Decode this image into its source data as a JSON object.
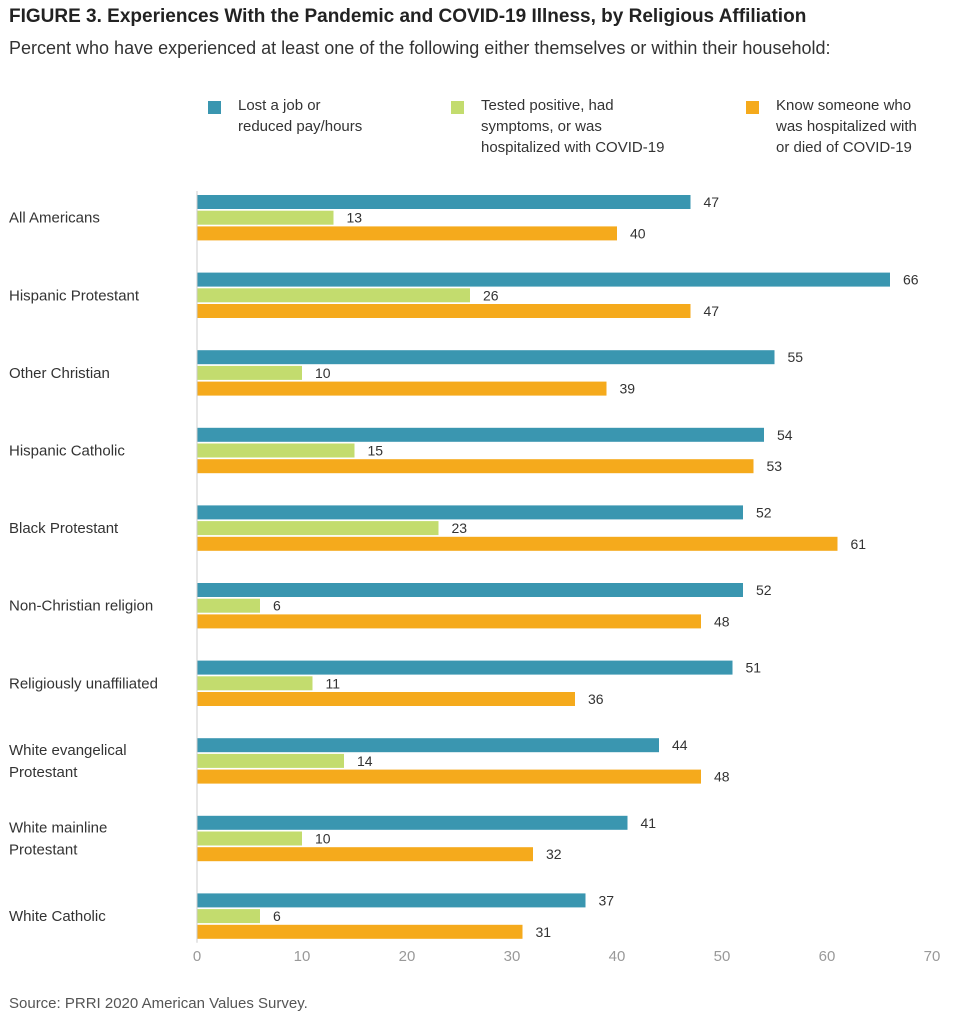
{
  "title": "FIGURE 3. Experiences With the Pandemic and COVID-19 Illness, by Religious Affiliation",
  "subtitle": "Percent who have experienced at least one of the following either themselves or within their household:",
  "source": "Source: PRRI 2020 American Values Survey.",
  "colors": {
    "lost_job": "#3a96b0",
    "tested_positive": "#c3dc6e",
    "know_someone": "#f5aa1c"
  },
  "chart_data": {
    "type": "bar",
    "orientation": "horizontal",
    "title": "FIGURE 3. Experiences With the Pandemic and COVID-19 Illness, by Religious Affiliation",
    "subtitle": "Percent who have experienced at least one of the following either themselves or within their household:",
    "categories": [
      "All Americans",
      "Hispanic Protestant",
      "Other Christian",
      "Hispanic Catholic",
      "Black Protestant",
      "Non-Christian religion",
      "Religiously unaffiliated",
      "White evangelical Protestant",
      "White mainline Protestant",
      "White Catholic"
    ],
    "category_lines": [
      [
        "All Americans"
      ],
      [
        "Hispanic Protestant"
      ],
      [
        "Other Christian"
      ],
      [
        "Hispanic Catholic"
      ],
      [
        "Black Protestant"
      ],
      [
        "Non-Christian religion"
      ],
      [
        "Religiously unaffiliated"
      ],
      [
        "White evangelical",
        "Protestant"
      ],
      [
        "White mainline",
        "Protestant"
      ],
      [
        "White Catholic"
      ]
    ],
    "series": [
      {
        "name": "Lost a job or\nreduced pay/hours",
        "color": "#3a96b0",
        "values": [
          47,
          66,
          55,
          54,
          52,
          52,
          51,
          44,
          41,
          37
        ]
      },
      {
        "name": "Tested positive, had\nsymptoms, or was\nhospitalized with COVID-19",
        "color": "#c3dc6e",
        "values": [
          13,
          26,
          10,
          15,
          23,
          6,
          11,
          14,
          10,
          6
        ]
      },
      {
        "name": "Know someone who\nwas hospitalized with\nor died of COVID-19",
        "color": "#f5aa1c",
        "values": [
          40,
          47,
          39,
          53,
          61,
          48,
          36,
          48,
          32,
          31
        ]
      }
    ],
    "xlim": [
      0,
      70
    ],
    "xticks": [
      0,
      10,
      20,
      30,
      40,
      50,
      60,
      70
    ],
    "xlabel": "",
    "ylabel": "",
    "grid": false,
    "legend": "top"
  }
}
